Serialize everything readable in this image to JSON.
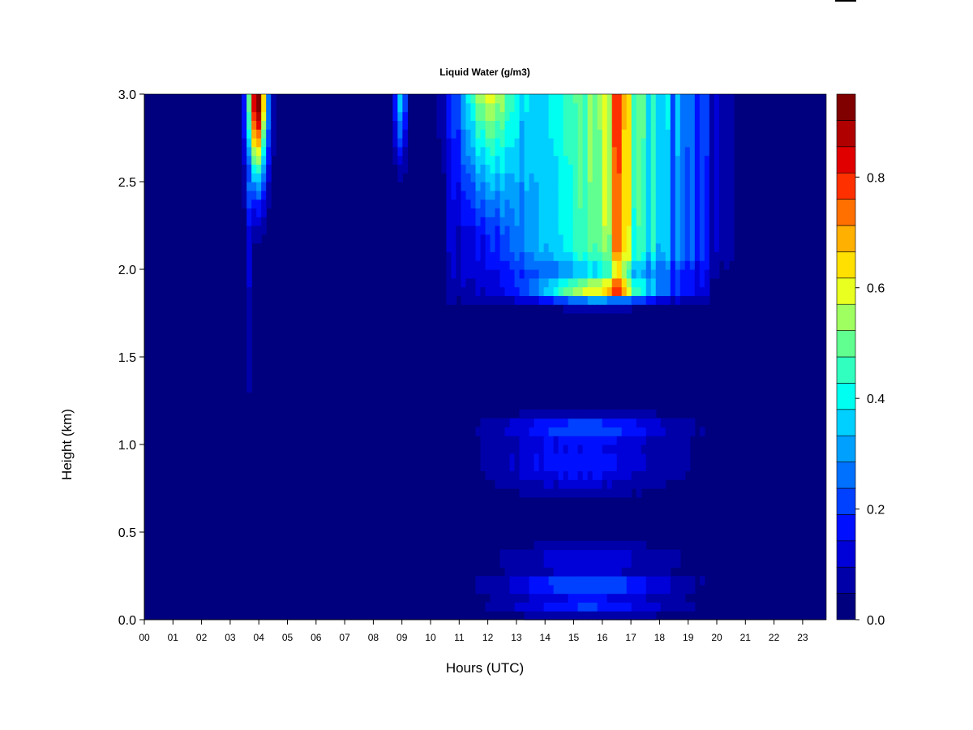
{
  "chart_data": {
    "type": "heatmap",
    "title": "Liquid Water (g/m3)",
    "xlabel": "Hours (UTC)",
    "ylabel": "Height (km)",
    "xlim": [
      0,
      23.85
    ],
    "ylim": [
      0,
      3.0
    ],
    "x_ticks": [
      "00",
      "01",
      "02",
      "03",
      "04",
      "05",
      "06",
      "07",
      "08",
      "09",
      "10",
      "11",
      "12",
      "13",
      "14",
      "15",
      "16",
      "17",
      "18",
      "19",
      "20",
      "21",
      "22",
      "23"
    ],
    "y_ticks": [
      "0.0",
      "0.5",
      "1.0",
      "1.5",
      "2.0",
      "2.5",
      "3.0"
    ],
    "colorbar": {
      "min": 0.0,
      "max": 0.95,
      "tick_values": [
        0.0,
        0.2,
        0.4,
        0.6,
        0.8
      ],
      "tick_labels": [
        "0.0",
        "0.2",
        "0.4",
        "0.6",
        "0.8"
      ],
      "levels": 19,
      "colors": [
        "#00007F",
        "#0000A8",
        "#0000D8",
        "#0010FF",
        "#0040FF",
        "#0070FF",
        "#00A0FF",
        "#00D0FF",
        "#00FFF0",
        "#30FFC0",
        "#60FF90",
        "#A0FF60",
        "#E8FF20",
        "#FFE000",
        "#FFB000",
        "#FF7000",
        "#FF3000",
        "#E00000",
        "#B00000",
        "#800000"
      ]
    }
  }
}
